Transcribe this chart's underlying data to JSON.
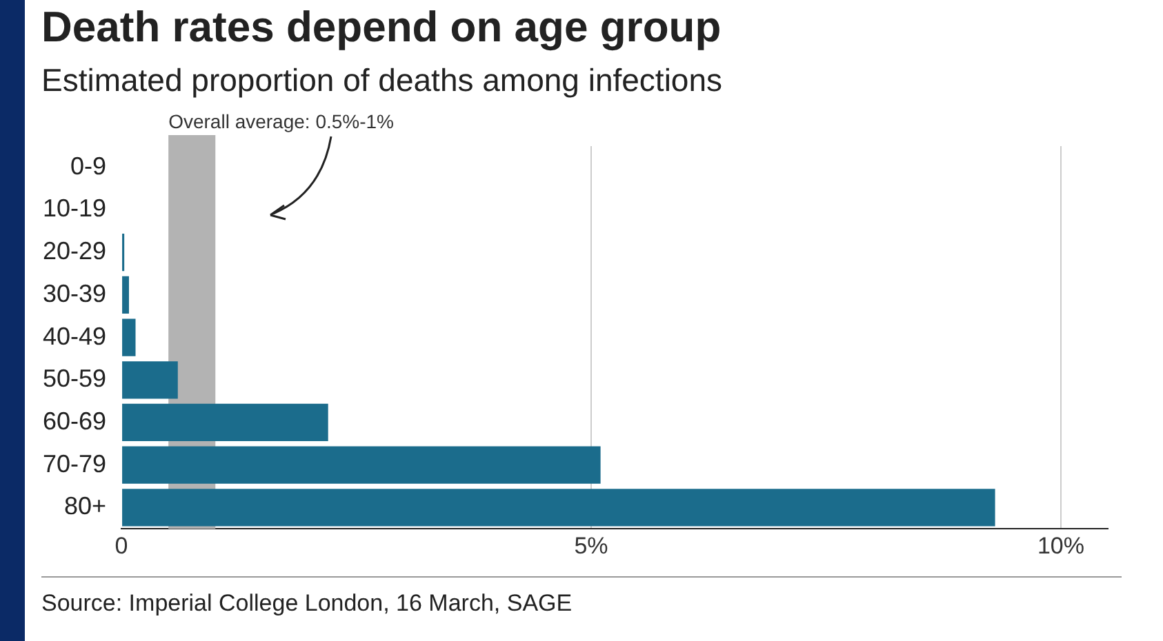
{
  "chart_data": {
    "type": "bar",
    "orientation": "horizontal",
    "title": "Death rates depend on age group",
    "subtitle": "Estimated proportion of deaths among infections",
    "categories": [
      "0-9",
      "10-19",
      "20-29",
      "30-39",
      "40-49",
      "50-59",
      "60-69",
      "70-79",
      "80+"
    ],
    "values": [
      null,
      null,
      0.03,
      0.08,
      0.15,
      0.6,
      2.2,
      5.1,
      9.3
    ],
    "color": "#1b6c8c",
    "xlim": [
      0,
      10.5
    ],
    "xticks": [
      0,
      {
        "value": 5,
        "label": "5%"
      },
      {
        "value": 10,
        "label": "10%"
      }
    ],
    "grid": "x",
    "bands": [
      {
        "axis": "x",
        "from": 0.5,
        "to": 1,
        "label": "Overall average: 0.5%-1%",
        "color": "#b3b3b3"
      }
    ],
    "annotations": [
      "Source: Imperial College London, 16 March, SAGE"
    ]
  }
}
